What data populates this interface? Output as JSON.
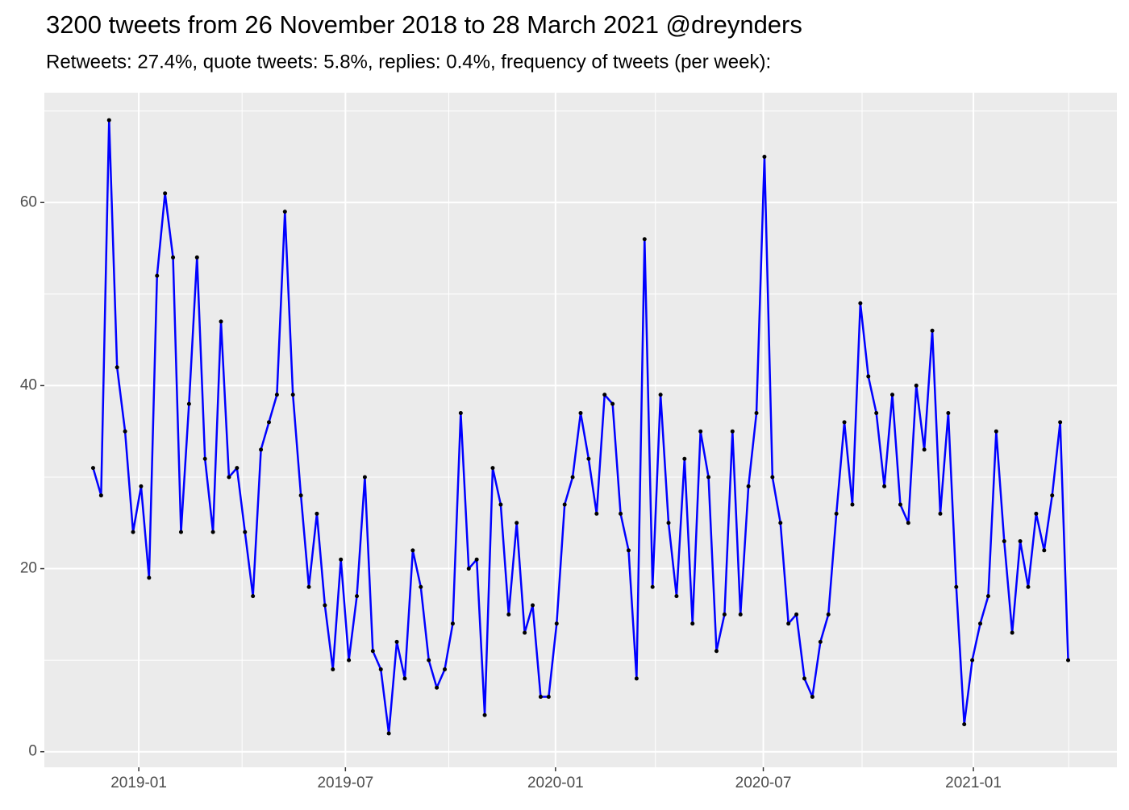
{
  "chart_data": {
    "type": "line",
    "title": "3200 tweets from 26 November 2018 to 28 March 2021 @dreynders",
    "subtitle": "Retweets: 27.4%, quote tweets: 5.8%, replies: 0.4%, frequency of tweets (per week):",
    "values": [
      31,
      28,
      69,
      42,
      35,
      24,
      29,
      19,
      52,
      61,
      54,
      24,
      38,
      54,
      32,
      24,
      47,
      30,
      31,
      24,
      17,
      33,
      36,
      39,
      59,
      39,
      28,
      18,
      26,
      16,
      9,
      21,
      10,
      17,
      30,
      11,
      9,
      2,
      12,
      8,
      22,
      18,
      10,
      7,
      9,
      14,
      37,
      20,
      21,
      4,
      31,
      27,
      15,
      25,
      13,
      16,
      6,
      6,
      14,
      27,
      30,
      37,
      32,
      26,
      39,
      38,
      26,
      22,
      8,
      56,
      18,
      39,
      25,
      17,
      32,
      14,
      35,
      30,
      11,
      15,
      35,
      15,
      29,
      37,
      65,
      30,
      25,
      14,
      15,
      8,
      6,
      12,
      15,
      26,
      36,
      27,
      49,
      41,
      37,
      29,
      39,
      27,
      25,
      40,
      33,
      46,
      26,
      37,
      18,
      3,
      10,
      14,
      17,
      35,
      23,
      13,
      23,
      18,
      26,
      22,
      28,
      36,
      10
    ],
    "color": "#0000ff",
    "point_color": "#000000",
    "xlim": [
      -6.1,
      128.1
    ],
    "xticks": [
      {
        "value": 5.714,
        "label": "2019-01"
      },
      {
        "value": 31.571,
        "label": "2019-07"
      },
      {
        "value": 57.857,
        "label": "2020-01"
      },
      {
        "value": 83.857,
        "label": "2020-07"
      },
      {
        "value": 110.143,
        "label": "2021-01"
      }
    ],
    "ylim": [
      -1.7,
      72
    ],
    "yticks": [
      0,
      20,
      40,
      60
    ],
    "grid": true
  }
}
